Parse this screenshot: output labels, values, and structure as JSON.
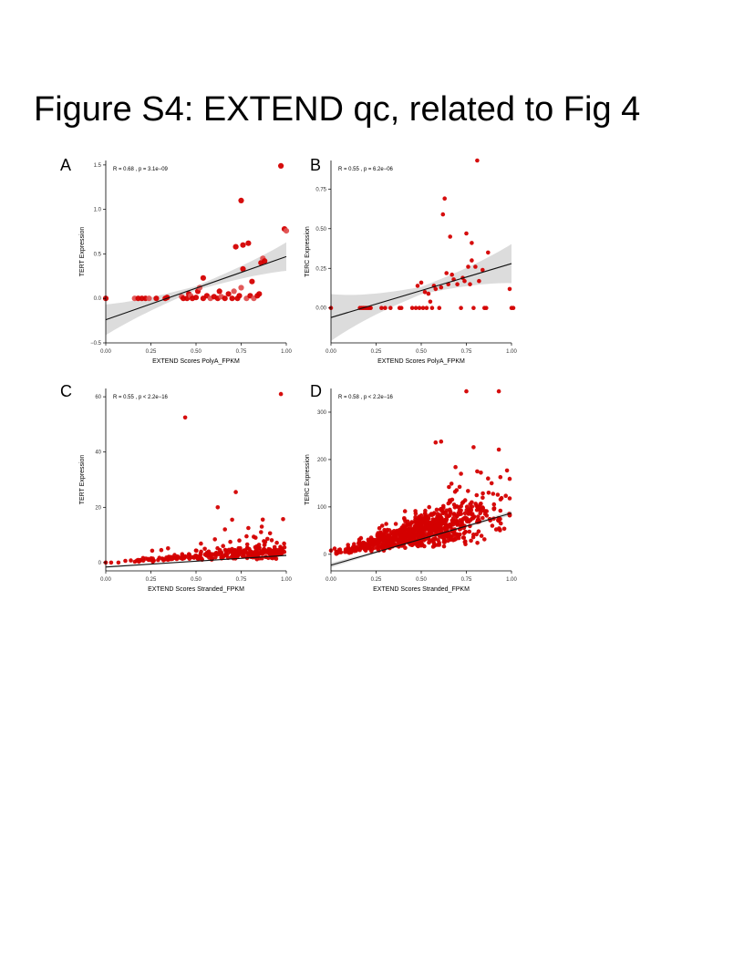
{
  "figure": {
    "title": "Figure S4: EXTEND qc, related to Fig 4",
    "point_color": "#d40000",
    "point_light_color": "#e05050",
    "band_color": "#dcdcdc",
    "line_color": "#111111"
  },
  "chart_data": [
    {
      "panel": "A",
      "type": "scatter",
      "annotation": "R = 0.68 , p = 3.1e−09",
      "xlabel": "EXTEND Scores PolyA_FPKM",
      "ylabel": "TERT Expression",
      "xlim": [
        0,
        1
      ],
      "ylim": [
        -0.5,
        1.55
      ],
      "xticks": [
        0.0,
        0.25,
        0.5,
        0.75,
        1.0
      ],
      "xtick_labels": [
        "0.00",
        "0.25",
        "0.50",
        "0.75",
        "1.00"
      ],
      "yticks": [
        -0.5,
        0.0,
        0.5,
        1.0,
        1.5
      ],
      "ytick_labels": [
        "−0.5",
        "0.0",
        "0.5",
        "1.0",
        "1.5"
      ],
      "regression": {
        "x": [
          0.0,
          1.0
        ],
        "y": [
          -0.24,
          0.47
        ]
      },
      "band_halfwidth": [
        0.14,
        0.03,
        0.13
      ],
      "point_size": "large",
      "points": [
        [
          0.0,
          0.0
        ],
        [
          0.16,
          0.0
        ],
        [
          0.18,
          0.0
        ],
        [
          0.2,
          0.0
        ],
        [
          0.22,
          0.0
        ],
        [
          0.24,
          0.0
        ],
        [
          0.28,
          0.0
        ],
        [
          0.33,
          0.0
        ],
        [
          0.34,
          0.01
        ],
        [
          0.42,
          0.02
        ],
        [
          0.43,
          0.0
        ],
        [
          0.45,
          0.0
        ],
        [
          0.46,
          0.05
        ],
        [
          0.47,
          0.03
        ],
        [
          0.48,
          0.0
        ],
        [
          0.5,
          0.01
        ],
        [
          0.51,
          0.08
        ],
        [
          0.52,
          0.12
        ],
        [
          0.54,
          0.0
        ],
        [
          0.54,
          0.23
        ],
        [
          0.56,
          0.03
        ],
        [
          0.58,
          0.0
        ],
        [
          0.6,
          0.02
        ],
        [
          0.62,
          0.0
        ],
        [
          0.63,
          0.08
        ],
        [
          0.64,
          0.02
        ],
        [
          0.66,
          0.0
        ],
        [
          0.68,
          0.05
        ],
        [
          0.7,
          0.0
        ],
        [
          0.71,
          0.08
        ],
        [
          0.72,
          0.58
        ],
        [
          0.73,
          0.0
        ],
        [
          0.74,
          0.03
        ],
        [
          0.75,
          0.12
        ],
        [
          0.75,
          1.1
        ],
        [
          0.76,
          0.6
        ],
        [
          0.76,
          0.33
        ],
        [
          0.78,
          0.0
        ],
        [
          0.79,
          0.62
        ],
        [
          0.8,
          0.03
        ],
        [
          0.81,
          0.19
        ],
        [
          0.82,
          0.0
        ],
        [
          0.84,
          0.03
        ],
        [
          0.85,
          0.05
        ],
        [
          0.86,
          0.4
        ],
        [
          0.87,
          0.45
        ],
        [
          0.88,
          0.42
        ],
        [
          0.97,
          1.49
        ],
        [
          0.99,
          0.78
        ],
        [
          1.0,
          0.76
        ]
      ]
    },
    {
      "panel": "B",
      "type": "scatter",
      "annotation": "R = 0.55 , p = 6.2e−06",
      "xlabel": "EXTEND Scores PolyA_FPKM",
      "ylabel": "TERC Expression",
      "xlim": [
        0,
        1
      ],
      "ylim": [
        -0.22,
        0.93
      ],
      "xticks": [
        0.0,
        0.25,
        0.5,
        0.75,
        1.0
      ],
      "xtick_labels": [
        "0.00",
        "0.25",
        "0.50",
        "0.75",
        "1.00"
      ],
      "yticks": [
        0.0,
        0.25,
        0.5,
        0.75
      ],
      "ytick_labels": [
        "0.00",
        "0.25",
        "0.50",
        "0.75"
      ],
      "regression": {
        "x": [
          0.0,
          1.0
        ],
        "y": [
          -0.06,
          0.28
        ]
      },
      "band_halfwidth": [
        0.12,
        0.03,
        0.1
      ],
      "point_size": "small",
      "points": [
        [
          0.0,
          0.0
        ],
        [
          0.16,
          0.0
        ],
        [
          0.17,
          0.0
        ],
        [
          0.18,
          0.0
        ],
        [
          0.19,
          0.0
        ],
        [
          0.2,
          0.0
        ],
        [
          0.21,
          0.0
        ],
        [
          0.22,
          0.0
        ],
        [
          0.28,
          0.0
        ],
        [
          0.3,
          0.0
        ],
        [
          0.33,
          0.0
        ],
        [
          0.38,
          0.0
        ],
        [
          0.39,
          0.0
        ],
        [
          0.45,
          0.0
        ],
        [
          0.47,
          0.0
        ],
        [
          0.48,
          0.14
        ],
        [
          0.49,
          0.0
        ],
        [
          0.5,
          0.16
        ],
        [
          0.51,
          0.0
        ],
        [
          0.52,
          0.1
        ],
        [
          0.53,
          0.0
        ],
        [
          0.54,
          0.09
        ],
        [
          0.55,
          0.04
        ],
        [
          0.56,
          0.0
        ],
        [
          0.57,
          0.14
        ],
        [
          0.58,
          0.12
        ],
        [
          0.6,
          0.0
        ],
        [
          0.61,
          0.13
        ],
        [
          0.62,
          0.59
        ],
        [
          0.63,
          0.69
        ],
        [
          0.64,
          0.22
        ],
        [
          0.65,
          0.15
        ],
        [
          0.66,
          0.45
        ],
        [
          0.67,
          0.21
        ],
        [
          0.68,
          0.18
        ],
        [
          0.7,
          0.15
        ],
        [
          0.72,
          0.0
        ],
        [
          0.73,
          0.19
        ],
        [
          0.74,
          0.17
        ],
        [
          0.75,
          0.47
        ],
        [
          0.76,
          0.26
        ],
        [
          0.77,
          0.15
        ],
        [
          0.78,
          0.41
        ],
        [
          0.78,
          0.3
        ],
        [
          0.79,
          0.0
        ],
        [
          0.8,
          0.26
        ],
        [
          0.81,
          0.93
        ],
        [
          0.82,
          0.17
        ],
        [
          0.84,
          0.24
        ],
        [
          0.85,
          0.0
        ],
        [
          0.86,
          0.0
        ],
        [
          0.87,
          0.35
        ],
        [
          0.99,
          0.12
        ],
        [
          1.0,
          0.0
        ],
        [
          1.01,
          0.0
        ]
      ]
    },
    {
      "panel": "C",
      "type": "scatter",
      "annotation": "R = 0.55 , p < 2.2e−16",
      "xlabel": "EXTEND Scores Stranded_FPKM",
      "ylabel": "TERT Expression",
      "xlim": [
        0,
        1
      ],
      "ylim": [
        -3,
        63
      ],
      "xticks": [
        0.0,
        0.25,
        0.5,
        0.75,
        1.0
      ],
      "xtick_labels": [
        "0.00",
        "0.25",
        "0.50",
        "0.75",
        "1.00"
      ],
      "yticks": [
        0,
        20,
        40,
        60
      ],
      "ytick_labels": [
        "0",
        "20",
        "40",
        "60"
      ],
      "regression": {
        "x": [
          0.0,
          1.0
        ],
        "y": [
          -1.6,
          2.6
        ]
      },
      "band_halfwidth": [
        0.3,
        0.15,
        0.3
      ],
      "point_size": "small",
      "generator": {
        "seed": 17,
        "count": 300,
        "xmin": 0.02,
        "xmax": 0.99,
        "density": "right-skewed",
        "y_base_slope": 3.5,
        "y_noise": 1.6,
        "outlier_rate": 0.06,
        "outlier_scale": 9,
        "y_floor": 0
      },
      "points": [
        [
          0.0,
          0.0
        ],
        [
          0.03,
          0.0
        ],
        [
          0.07,
          0.0
        ],
        [
          0.44,
          52.5
        ],
        [
          0.97,
          61.0
        ],
        [
          0.62,
          20.0
        ],
        [
          0.72,
          25.5
        ],
        [
          0.7,
          15.5
        ],
        [
          0.66,
          12.0
        ],
        [
          0.79,
          12.5
        ],
        [
          0.78,
          9.5
        ],
        [
          0.83,
          9.0
        ],
        [
          0.74,
          8.0
        ],
        [
          0.69,
          7.5
        ],
        [
          0.65,
          6.0
        ],
        [
          0.88,
          6.5
        ],
        [
          0.99,
          5.5
        ],
        [
          0.57,
          4.0
        ]
      ]
    },
    {
      "panel": "D",
      "type": "scatter",
      "annotation": "R = 0.58 , p < 2.2e−16",
      "xlabel": "EXTEND Scores Stranded_FPKM",
      "ylabel": "TERC Expression",
      "xlim": [
        0,
        1
      ],
      "ylim": [
        -35,
        350
      ],
      "xticks": [
        0.0,
        0.25,
        0.5,
        0.75,
        1.0
      ],
      "xtick_labels": [
        "0.00",
        "0.25",
        "0.50",
        "0.75",
        "1.00"
      ],
      "yticks": [
        0,
        100,
        200,
        300
      ],
      "ytick_labels": [
        "0",
        "100",
        "200",
        "300"
      ],
      "regression": {
        "x": [
          0.0,
          1.0
        ],
        "y": [
          -23,
          87
        ]
      },
      "band_halfwidth": [
        4,
        2,
        4
      ],
      "point_size": "small",
      "generator": {
        "seed": 5,
        "count": 900,
        "xmin": 0.03,
        "xmax": 0.99,
        "density": "center",
        "y_base_slope": 75,
        "y_noise": 38,
        "outlier_rate": 0.02,
        "outlier_scale": 120,
        "y_floor": 0
      },
      "points": [
        [
          0.0,
          8.0
        ],
        [
          0.02,
          12.0
        ],
        [
          0.05,
          10.0
        ],
        [
          0.1,
          4.0
        ],
        [
          0.75,
          344.0
        ],
        [
          0.93,
          344.0
        ],
        [
          0.58,
          236.0
        ],
        [
          0.61,
          238.0
        ],
        [
          0.79,
          226.0
        ],
        [
          0.93,
          221.0
        ],
        [
          0.69,
          184.0
        ],
        [
          0.81,
          175.0
        ],
        [
          0.72,
          170.0
        ],
        [
          0.87,
          160.0
        ],
        [
          0.89,
          150.0
        ],
        [
          0.96,
          54.0
        ]
      ]
    }
  ]
}
